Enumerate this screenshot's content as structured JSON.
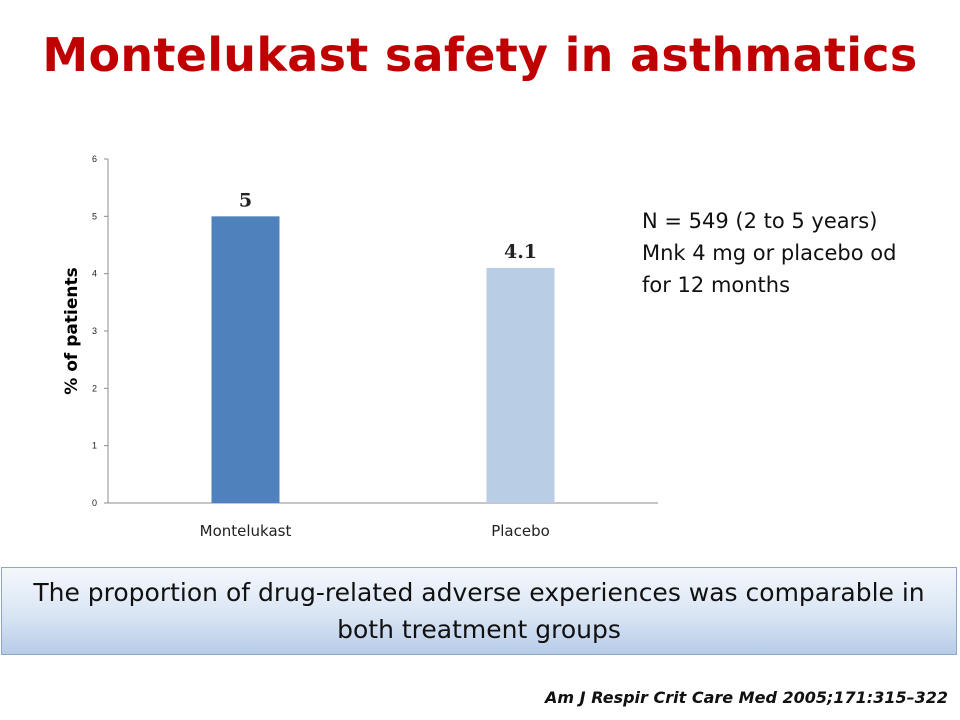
{
  "slide": {
    "title": "Montelukast safety in asthmatics",
    "study_note": [
      "N = 549 (2 to 5 years)",
      "Mnk 4 mg or placebo od",
      "for 12 months"
    ],
    "conclusion": "The proportion of drug-related adverse experiences was comparable in both treatment groups",
    "citation": "Am J Respir Crit Care Med 2005;171:315–322"
  },
  "chart_data": {
    "type": "bar",
    "categories": [
      "Montelukast",
      "Placebo"
    ],
    "values": [
      5,
      4.1
    ],
    "data_labels": [
      "5",
      "4.1"
    ],
    "bar_colors": [
      "#4f81bd",
      "#b9cde5"
    ],
    "title": "",
    "xlabel": "",
    "ylabel": "% of patients",
    "ylim": [
      0,
      6
    ],
    "yticks": [
      0,
      1,
      2,
      3,
      4,
      5,
      6
    ],
    "grid": false,
    "legend": "none"
  }
}
